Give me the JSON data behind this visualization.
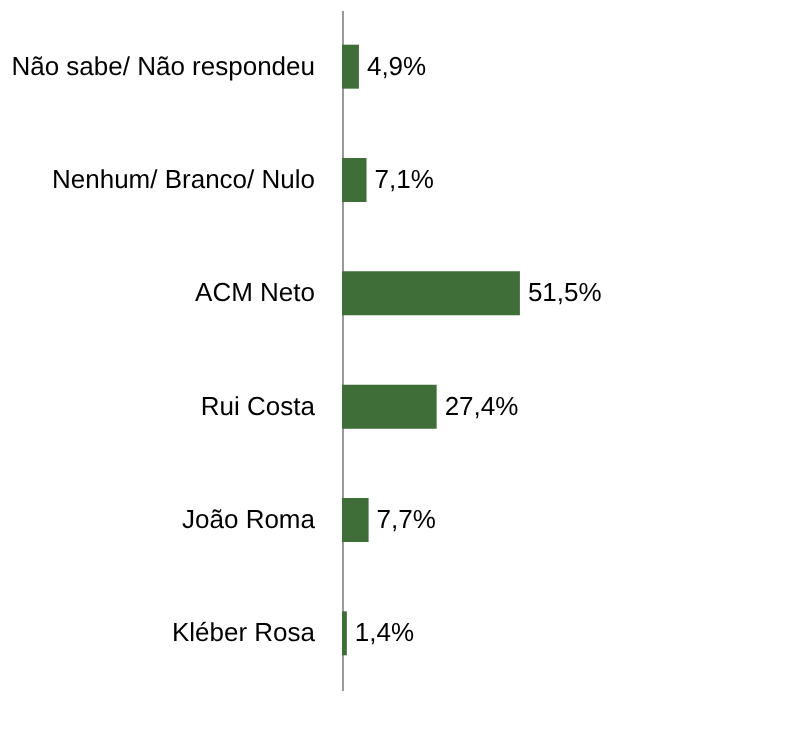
{
  "chart_data": {
    "type": "bar",
    "orientation": "horizontal",
    "categories": [
      "Não sabe/ Não respondeu",
      "Nenhum/ Branco/ Nulo",
      "ACM Neto",
      "Rui Costa",
      "João Roma",
      "Kléber Rosa"
    ],
    "values": [
      4.9,
      7.1,
      51.5,
      27.4,
      7.7,
      1.4
    ],
    "value_labels": [
      "4,9%",
      "7,1%",
      "51,5%",
      "27,4%",
      "7,7%",
      "1,4%"
    ],
    "color": "#3f6e38",
    "tick_labels": "y"
  }
}
